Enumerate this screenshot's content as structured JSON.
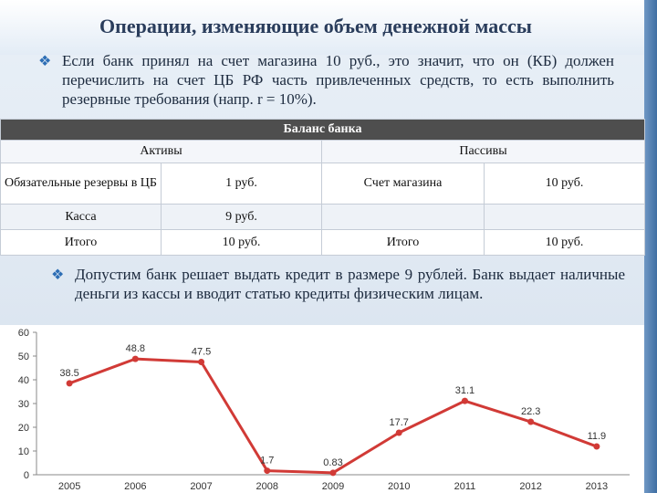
{
  "slide": {
    "title": "Операции, изменяющие объем денежной массы",
    "bullet1": "Если банк принял на счет магазина 10 руб., это значит, что он (КБ) должен перечислить на счет ЦБ РФ часть привлеченных средств, то есть выполнить резервные требования (напр. r = 10%).",
    "bullet2": "Допустим банк решает выдать кредит в размере 9 рублей. Банк выдает наличные деньги из кассы и вводит статью кредиты физическим лицам.",
    "colors": {
      "accent": "#2d6eb5",
      "line": "#d13a36",
      "side": "#3f6fa3"
    },
    "bullet_icon": "diamond-bullet-icon"
  },
  "balance": {
    "title": "Баланс банка",
    "assets_header": "Активы",
    "liabilities_header": "Пассивы",
    "rows": [
      {
        "a_label": "Обязательные резервы в ЦБ",
        "a_value": "1 руб.",
        "l_label": "Счет магазина",
        "l_value": "10 руб."
      },
      {
        "a_label": "Касса",
        "a_value": "9 руб.",
        "l_label": "",
        "l_value": ""
      },
      {
        "a_label": "Итого",
        "a_value": "10 руб.",
        "l_label": "Итого",
        "l_value": "10 руб."
      }
    ]
  },
  "chart_data": {
    "type": "line",
    "categories": [
      "2005",
      "2006",
      "2007",
      "2008",
      "2009",
      "2010",
      "2011",
      "2012",
      "2013"
    ],
    "series": [
      {
        "values": [
          38.5,
          48.8,
          47.5,
          1.7,
          0.83,
          17.7,
          31.1,
          22.3,
          11.9
        ],
        "labels": [
          "38.5",
          "48.8",
          "47.5",
          "1.7",
          "0.83",
          "17.7",
          "31.1",
          "22.3",
          "11.9"
        ]
      }
    ],
    "y_ticks": [
      "0",
      "10",
      "20",
      "30",
      "40",
      "50",
      "60"
    ],
    "ylim": [
      0,
      60
    ],
    "grid": false,
    "color": "#d13a36"
  }
}
